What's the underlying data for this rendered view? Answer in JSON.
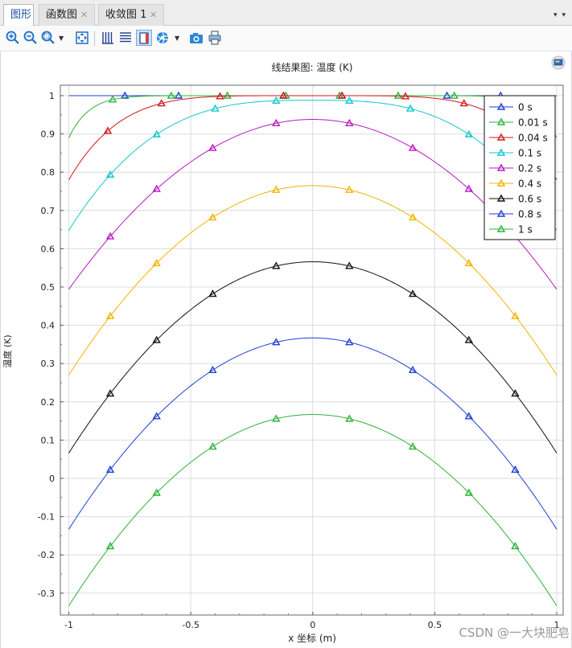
{
  "tabs": [
    {
      "label": "图形",
      "closable": false
    },
    {
      "label": "函数图",
      "closable": true
    },
    {
      "label": "收敛图 1",
      "closable": true
    }
  ],
  "tabbar_arrows": [
    "▾",
    "▾"
  ],
  "toolbar": {
    "icons": [
      "zoom-in-icon",
      "zoom-out-icon",
      "zoom-box-icon",
      "zoom-extents-icon",
      "grid-icon",
      "legend-icon",
      "axes-icon",
      "color-icon",
      "snapshot-icon",
      "print-icon"
    ],
    "accent": "#1f6fc5"
  },
  "watermark": "CSDN @一大块肥皂",
  "chart_data": {
    "type": "line",
    "title": "线结果图: 温度 (K)",
    "xlabel": "x 坐标 (m)",
    "ylabel": "温度 (K)",
    "xlim": [
      -1,
      1
    ],
    "ylim": [
      -0.34,
      1.02
    ],
    "xticks": [
      -1,
      -0.5,
      0,
      0.5,
      1
    ],
    "xtick_labels": [
      "-1",
      "-0.5",
      "0",
      "0.5",
      "1"
    ],
    "yticks": [
      -0.3,
      -0.2,
      -0.1,
      0,
      0.1,
      0.2,
      0.3,
      0.4,
      0.5,
      0.6,
      0.7,
      0.8,
      0.9,
      1
    ],
    "ytick_labels": [
      "-0.3",
      "-0.2",
      "-0.1",
      "0",
      "0.1",
      "0.2",
      "0.3",
      "0.4",
      "0.5",
      "0.6",
      "0.7",
      "0.8",
      "0.9",
      "1"
    ],
    "grid": true,
    "legend_position": "top-right",
    "marker": "triangle",
    "series": [
      {
        "name": "0 s",
        "color": "#1f3fd6",
        "center": 1.0,
        "edge": 1.0,
        "markers_x": [
          -0.77,
          -0.55,
          -0.12,
          0.12,
          0.55,
          0.77
        ]
      },
      {
        "name": "0.01 s",
        "color": "#2eb33a",
        "center": 1.0,
        "edge": 0.89,
        "markers_x": [
          -0.82,
          -0.58,
          -0.35,
          -0.11,
          0.11,
          0.35,
          0.58,
          0.82
        ]
      },
      {
        "name": "0.04 s",
        "color": "#d21a1a",
        "center": 1.0,
        "edge": 0.78,
        "markers_x": [
          -0.84,
          -0.62,
          -0.38,
          -0.12,
          0.12,
          0.38,
          0.62,
          0.84
        ]
      },
      {
        "name": "0.1 s",
        "color": "#10c8cc",
        "center": 0.988,
        "edge": 0.648,
        "markers_x": [
          -0.83,
          -0.64,
          -0.4,
          -0.15,
          0.15,
          0.4,
          0.64,
          0.83
        ]
      },
      {
        "name": "0.2 s",
        "color": "#b818c0",
        "center": 0.938,
        "edge": 0.494,
        "markers_x": [
          -0.83,
          -0.64,
          -0.41,
          -0.15,
          0.15,
          0.41,
          0.64,
          0.83
        ]
      },
      {
        "name": "0.4 s",
        "color": "#f0b400",
        "center": 0.765,
        "edge": 0.27,
        "markers_x": [
          -0.83,
          -0.64,
          -0.41,
          -0.15,
          0.15,
          0.41,
          0.64,
          0.83
        ]
      },
      {
        "name": "0.6 s",
        "color": "#111111",
        "center": 0.566,
        "edge": 0.066,
        "markers_x": [
          -0.83,
          -0.64,
          -0.41,
          -0.15,
          0.15,
          0.41,
          0.64,
          0.83
        ]
      },
      {
        "name": "0.8 s",
        "color": "#1f3fd6",
        "center": 0.367,
        "edge": -0.133,
        "markers_x": [
          -0.83,
          -0.64,
          -0.41,
          -0.15,
          0.15,
          0.41,
          0.64,
          0.83
        ]
      },
      {
        "name": "1 s",
        "color": "#2eb33a",
        "center": 0.167,
        "edge": -0.333,
        "markers_x": [
          -0.83,
          -0.64,
          -0.41,
          -0.15,
          0.15,
          0.41,
          0.64,
          0.83
        ]
      }
    ]
  }
}
